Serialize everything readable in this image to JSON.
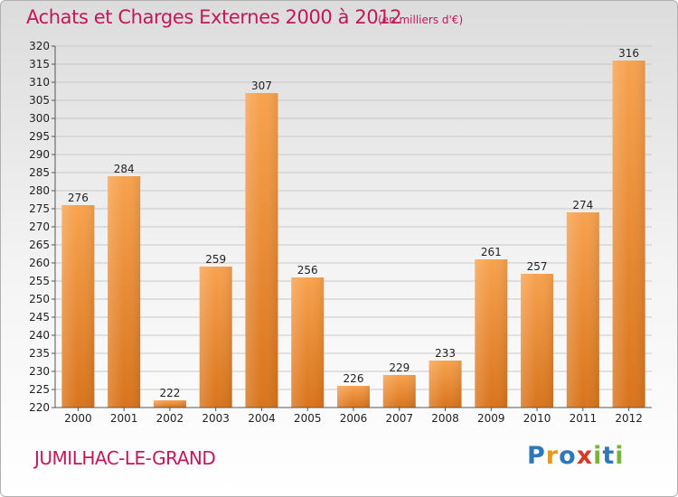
{
  "header": {
    "title": "Achats et Charges Externes 2000 à 2012",
    "unit": "(en milliers d'€)"
  },
  "footer": {
    "location": "JUMILHAC-LE-GRAND",
    "logo": [
      "P",
      "r",
      "o",
      "x",
      "i",
      "t",
      "i"
    ]
  },
  "colors": {
    "accent": "#c2185b",
    "bar_top": "#f7a24e",
    "bar_bottom": "#d9741c",
    "logo": [
      "#2e77bb",
      "#e8981d",
      "#2e77bb",
      "#d23a2a",
      "#79b43a",
      "#2e77bb",
      "#79b43a"
    ]
  },
  "chart_data": {
    "type": "bar",
    "categories": [
      "2000",
      "2001",
      "2002",
      "2003",
      "2004",
      "2005",
      "2006",
      "2007",
      "2008",
      "2009",
      "2010",
      "2011",
      "2012"
    ],
    "values": [
      276,
      284,
      222,
      259,
      307,
      256,
      226,
      229,
      233,
      261,
      257,
      274,
      316
    ],
    "title": "Achats et Charges Externes 2000 à 2012",
    "xlabel": "",
    "ylabel": "",
    "ylim": [
      220,
      320
    ],
    "yticks": [
      "220",
      "225",
      "230",
      "235",
      "240",
      "245",
      "250",
      "255",
      "260",
      "265",
      "270",
      "275",
      "280",
      "285",
      "290",
      "295",
      "300",
      "305",
      "310",
      "315",
      "320"
    ],
    "grid": true,
    "legend": "none"
  }
}
